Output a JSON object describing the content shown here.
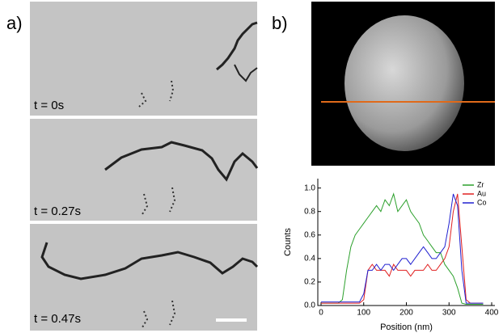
{
  "panels": {
    "a": {
      "label": "a)",
      "frames": [
        "t = 0s",
        "t = 0.27s",
        "t = 0.47s"
      ]
    },
    "b": {
      "label": "b)"
    }
  },
  "chart_data": {
    "type": "line",
    "xlabel": "Position (nm)",
    "ylabel": "Counts",
    "x": [
      0,
      10,
      20,
      30,
      40,
      50,
      60,
      70,
      80,
      90,
      100,
      110,
      120,
      130,
      140,
      150,
      160,
      170,
      180,
      190,
      200,
      210,
      220,
      230,
      240,
      250,
      260,
      270,
      280,
      290,
      300,
      310,
      320,
      330,
      340,
      350,
      360,
      370,
      380
    ],
    "series": [
      {
        "name": "Zr",
        "color": "#2ca02c",
        "values": [
          0.02,
          0.02,
          0.02,
          0.02,
          0.02,
          0.05,
          0.3,
          0.5,
          0.6,
          0.65,
          0.7,
          0.75,
          0.8,
          0.85,
          0.8,
          0.9,
          0.85,
          0.95,
          0.8,
          0.85,
          0.9,
          0.8,
          0.75,
          0.7,
          0.6,
          0.55,
          0.5,
          0.45,
          0.45,
          0.35,
          0.3,
          0.25,
          0.15,
          0.02,
          0.01,
          0.01,
          0.01,
          0.01,
          0.01
        ]
      },
      {
        "name": "Au",
        "color": "#e02020",
        "values": [
          0.02,
          0.02,
          0.02,
          0.02,
          0.02,
          0.02,
          0.02,
          0.02,
          0.02,
          0.02,
          0.05,
          0.3,
          0.35,
          0.3,
          0.3,
          0.3,
          0.25,
          0.35,
          0.3,
          0.3,
          0.3,
          0.25,
          0.3,
          0.3,
          0.3,
          0.35,
          0.3,
          0.3,
          0.35,
          0.4,
          0.5,
          0.8,
          0.95,
          0.5,
          0.05,
          0.02,
          0.02,
          0.02,
          0.02
        ]
      },
      {
        "name": "Co",
        "color": "#2020d0",
        "values": [
          0.03,
          0.03,
          0.03,
          0.03,
          0.03,
          0.03,
          0.03,
          0.03,
          0.03,
          0.03,
          0.1,
          0.3,
          0.3,
          0.35,
          0.3,
          0.35,
          0.35,
          0.3,
          0.35,
          0.4,
          0.4,
          0.35,
          0.4,
          0.45,
          0.5,
          0.45,
          0.4,
          0.4,
          0.45,
          0.5,
          0.7,
          0.95,
          0.85,
          0.3,
          0.02,
          0.02,
          0.02,
          0.02,
          0.02
        ]
      }
    ],
    "xlim": [
      0,
      400
    ],
    "xticks": [
      0,
      100,
      200,
      300,
      400
    ],
    "ylim": [
      0,
      1.08
    ],
    "yticks": [
      {
        "value": 0,
        "label": "0.0"
      },
      0.2,
      0.4,
      0.6,
      0.8,
      {
        "value": 1,
        "label": "1.0"
      }
    ],
    "legend": "top-right"
  }
}
